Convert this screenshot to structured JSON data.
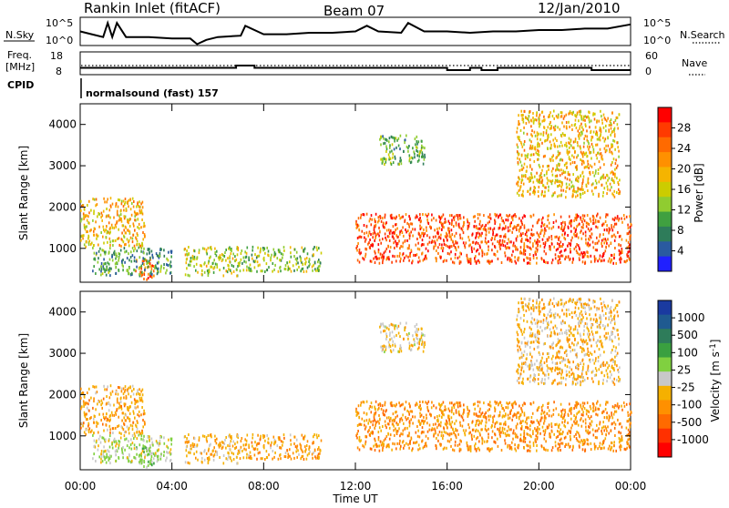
{
  "header": {
    "station": "Rankin Inlet (fitACF)",
    "beam": "Beam 07",
    "date": "12/Jan/2010"
  },
  "top_panels": {
    "nsky_label": "N.Sky",
    "nsearch_label": "N.Search",
    "log_ticks": [
      "10^5",
      "10^0"
    ],
    "freq_label_1": "Freq.",
    "freq_label_2": "[MHz]",
    "freq_ticks": [
      "18",
      "8"
    ],
    "nave_label": "Nave",
    "nave_ticks": [
      "60",
      "0"
    ],
    "cpid_label": "CPID",
    "cpid_text": "normalsound (fast) 157"
  },
  "axes": {
    "ylabel": "Slant Range [km]",
    "xlabel": "Time UT",
    "x_ticks": [
      "00:00",
      "04:00",
      "08:00",
      "12:00",
      "16:00",
      "20:00",
      "00:00"
    ],
    "y_ticks": [
      "1000",
      "2000",
      "3000",
      "4000"
    ]
  },
  "colorbars": {
    "power_label": "Power [dB]",
    "power_ticks": [
      "28",
      "24",
      "20",
      "16",
      "12",
      "8",
      "4"
    ],
    "power_colors": [
      "#ff0000",
      "#ff3a00",
      "#ff6a00",
      "#ff9000",
      "#f5b400",
      "#cccc00",
      "#90cc30",
      "#40a040",
      "#2e7c5a",
      "#2a5aa0",
      "#2020ff"
    ],
    "velocity_label": "Velocity [m s^-1]",
    "velocity_ticks": [
      "1000",
      "500",
      "100",
      "25",
      "-25",
      "-100",
      "-500",
      "-1000"
    ],
    "velocity_colors": [
      "#1a3aa0",
      "#1f5a90",
      "#2e7c5a",
      "#3aa040",
      "#80d040",
      "#c8c8c8",
      "#f5b000",
      "#ff9000",
      "#ff6a00",
      "#ff3000",
      "#ff0000"
    ]
  },
  "chart_data": {
    "type": "heatmap",
    "x": {
      "label": "Time UT",
      "range_hours": [
        0,
        24
      ]
    },
    "y": {
      "label": "Slant Range [km]",
      "range_km": [
        180,
        4500
      ]
    },
    "nsky_trace": [
      [
        0,
        0.5
      ],
      [
        0.5,
        0.6
      ],
      [
        1,
        0.7
      ],
      [
        1.2,
        0.2
      ],
      [
        1.4,
        0.7
      ],
      [
        1.6,
        0.2
      ],
      [
        2,
        0.7
      ],
      [
        3,
        0.7
      ],
      [
        4,
        0.75
      ],
      [
        4.8,
        0.75
      ],
      [
        5.1,
        0.95
      ],
      [
        5.5,
        0.8
      ],
      [
        6,
        0.7
      ],
      [
        7,
        0.65
      ],
      [
        7.2,
        0.3
      ],
      [
        8,
        0.6
      ],
      [
        9,
        0.6
      ],
      [
        10,
        0.55
      ],
      [
        11,
        0.55
      ],
      [
        12,
        0.5
      ],
      [
        12.5,
        0.3
      ],
      [
        13,
        0.5
      ],
      [
        14,
        0.55
      ],
      [
        14.3,
        0.2
      ],
      [
        15,
        0.5
      ],
      [
        16,
        0.5
      ],
      [
        17,
        0.55
      ],
      [
        18,
        0.5
      ],
      [
        19,
        0.5
      ],
      [
        20,
        0.45
      ],
      [
        21,
        0.45
      ],
      [
        22,
        0.4
      ],
      [
        23,
        0.4
      ],
      [
        24,
        0.25
      ]
    ],
    "freq_trace": [
      [
        0,
        11
      ],
      [
        2,
        11
      ],
      [
        4,
        11
      ],
      [
        6,
        11
      ],
      [
        6.8,
        11
      ],
      [
        6.8,
        12
      ],
      [
        7.6,
        12
      ],
      [
        7.6,
        11
      ],
      [
        12,
        11
      ],
      [
        15,
        11
      ],
      [
        16,
        11
      ],
      [
        16,
        10
      ],
      [
        17,
        10
      ],
      [
        17,
        11
      ],
      [
        17.5,
        11
      ],
      [
        17.5,
        10
      ],
      [
        18.2,
        10
      ],
      [
        18.2,
        11
      ],
      [
        22.3,
        11
      ],
      [
        22.3,
        10
      ],
      [
        24,
        10
      ]
    ],
    "nave_dotted_level": 12,
    "power_scale_dB": [
      0,
      30
    ],
    "velocity_scale_ms": [
      -1000,
      1000
    ],
    "echo_regions": [
      {
        "t_start": 0.0,
        "t_end": 2.8,
        "r_low": 1000,
        "r_high": 2200,
        "power_dB": 18,
        "velocity_ms": -300
      },
      {
        "t_start": 2.3,
        "t_end": 3.2,
        "r_low": 200,
        "r_high": 700,
        "power_dB": 24,
        "velocity_ms": 200
      },
      {
        "t_start": 0.5,
        "t_end": 4.0,
        "r_low": 300,
        "r_high": 1000,
        "power_dB": 8,
        "velocity_ms": 50
      },
      {
        "t_start": 4.5,
        "t_end": 7.0,
        "r_low": 300,
        "r_high": 1000,
        "power_dB": 14,
        "velocity_ms": -200
      },
      {
        "t_start": 7.0,
        "t_end": 10.5,
        "r_low": 400,
        "r_high": 1000,
        "power_dB": 12,
        "velocity_ms": -300
      },
      {
        "t_start": 12.0,
        "t_end": 24.0,
        "r_low": 600,
        "r_high": 1800,
        "power_dB": 26,
        "velocity_ms": -400
      },
      {
        "t_start": 13.0,
        "t_end": 15.0,
        "r_low": 3000,
        "r_high": 3700,
        "power_dB": 10,
        "velocity_ms": -100
      },
      {
        "t_start": 19.0,
        "t_end": 23.5,
        "r_low": 2200,
        "r_high": 4300,
        "power_dB": 18,
        "velocity_ms": -200
      }
    ]
  }
}
